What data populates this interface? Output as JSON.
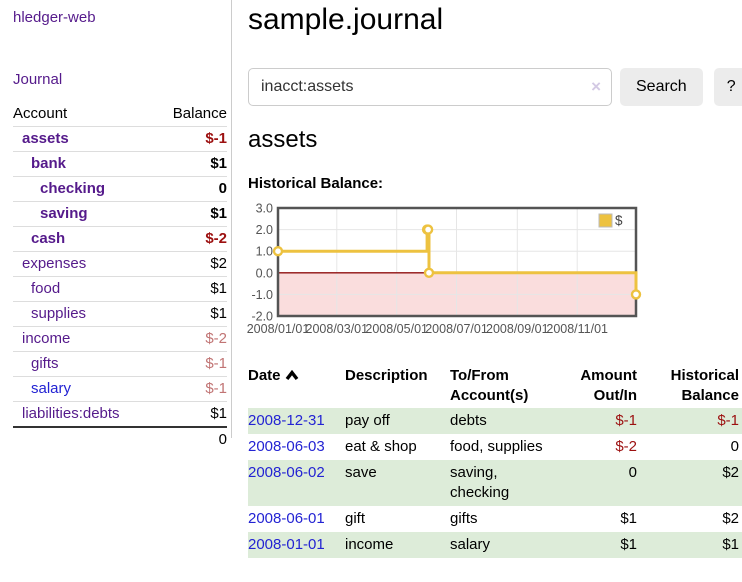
{
  "app": {
    "title": "hledger-web"
  },
  "sidebar": {
    "nav_journal": "Journal",
    "accounts_table": {
      "headers": {
        "account": "Account",
        "balance": "Balance"
      },
      "rows": [
        {
          "name": "assets",
          "depth": 1,
          "bold": true,
          "balance": "$-1",
          "balance_style": "neg"
        },
        {
          "name": "bank",
          "depth": 2,
          "bold": true,
          "balance": "$1",
          "balance_style": "pos"
        },
        {
          "name": "checking",
          "depth": 3,
          "bold": true,
          "balance": "0",
          "balance_style": "pos"
        },
        {
          "name": "saving",
          "depth": 3,
          "bold": true,
          "balance": "$1",
          "balance_style": "pos"
        },
        {
          "name": "cash",
          "depth": 2,
          "bold": true,
          "balance": "$-2",
          "balance_style": "neg"
        },
        {
          "name": "expenses",
          "depth": 1,
          "bold": false,
          "balance": "$2",
          "balance_style": "pos"
        },
        {
          "name": "food",
          "depth": 2,
          "bold": false,
          "balance": "$1",
          "balance_style": "pos"
        },
        {
          "name": "supplies",
          "depth": 2,
          "bold": false,
          "balance": "$1",
          "balance_style": "pos"
        },
        {
          "name": "income",
          "depth": 1,
          "bold": false,
          "balance": "$-2",
          "balance_style": "neg-faded"
        },
        {
          "name": "gifts",
          "depth": 2,
          "bold": false,
          "balance": "$-1",
          "balance_style": "neg-faded"
        },
        {
          "name": "salary",
          "depth": 2,
          "bold": false,
          "balance": "$-1",
          "balance_style": "neg-faded",
          "link_style": "blue"
        },
        {
          "name": "liabilities:debts",
          "depth": 1,
          "bold": false,
          "balance": "$1",
          "balance_style": "pos"
        }
      ],
      "total": "0"
    }
  },
  "header": {
    "title": "sample.journal"
  },
  "search": {
    "query": "inacct:assets",
    "clear_icon": "×",
    "button_label": "Search",
    "help_label": "?"
  },
  "account_page": {
    "title": "assets",
    "chart_title": "Historical Balance:"
  },
  "chart_data": {
    "type": "line",
    "title": "Historical Balance:",
    "step": true,
    "series": [
      {
        "name": "$",
        "points": [
          {
            "x": "2008-01-01",
            "y": 1
          },
          {
            "x": "2008-06-01",
            "y": 2
          },
          {
            "x": "2008-06-02",
            "y": 2
          },
          {
            "x": "2008-06-03",
            "y": 0
          },
          {
            "x": "2008-12-31",
            "y": -1
          }
        ]
      }
    ],
    "x_range": [
      "2008-01-01",
      "2008-12-31"
    ],
    "ylim": [
      -2,
      3
    ],
    "yticks": [
      3.0,
      2.0,
      1.0,
      0.0,
      -1.0,
      -2.0
    ],
    "xticks": [
      {
        "x": "2008-01-01",
        "label": "2008/01/01"
      },
      {
        "x": "2008-03-01",
        "label": "2008/03/01"
      },
      {
        "x": "2008-05-01",
        "label": "2008/05/01"
      },
      {
        "x": "2008-07-01",
        "label": "2008/07/01"
      },
      {
        "x": "2008-09-01",
        "label": "2008/09/01"
      },
      {
        "x": "2008-11-01",
        "label": "2008/11/01"
      }
    ],
    "legend": {
      "label": "$",
      "position": "top-right"
    },
    "grid": true,
    "colors": {
      "line": "#edc240",
      "marker_fill": "#ffffff",
      "negative_region": "#fadddd",
      "zero_line": "#8f0e0e",
      "grid": "#e6e6e6",
      "border": "#545454",
      "tick_text": "#545454"
    }
  },
  "register_table": {
    "headers": {
      "date": "Date",
      "description": "Description",
      "tofrom": "To/From Account(s)",
      "amount": "Amount Out/In",
      "balance": "Historical Balance"
    },
    "sort": {
      "column": "date",
      "direction": "ascending"
    },
    "rows": [
      {
        "date": "2008-12-31",
        "description": "pay off",
        "accounts": "debts",
        "amount": "$-1",
        "amount_style": "neg",
        "balance": "$-1",
        "balance_style": "neg",
        "highlight": true
      },
      {
        "date": "2008-06-03",
        "description": "eat & shop",
        "accounts": "food, supplies",
        "amount": "$-2",
        "amount_style": "neg",
        "balance": "0",
        "balance_style": "pos",
        "highlight": false
      },
      {
        "date": "2008-06-02",
        "description": "save",
        "accounts": "saving, checking",
        "amount": "0",
        "amount_style": "pos",
        "balance": "$2",
        "balance_style": "pos",
        "highlight": true
      },
      {
        "date": "2008-06-01",
        "description": "gift",
        "accounts": "gifts",
        "amount": "$1",
        "amount_style": "pos",
        "balance": "$2",
        "balance_style": "pos",
        "highlight": false
      },
      {
        "date": "2008-01-01",
        "description": "income",
        "accounts": "salary",
        "amount": "$1",
        "amount_style": "pos",
        "balance": "$1",
        "balance_style": "pos",
        "highlight": true
      }
    ]
  },
  "colors": {
    "link_purple": "#551a8b",
    "link_blue": "#2323d3",
    "negative": "#9c1010",
    "negative_faded": "#c17474",
    "row_highlight_green": "#ddecd9",
    "accent_gold": "#edc240"
  }
}
